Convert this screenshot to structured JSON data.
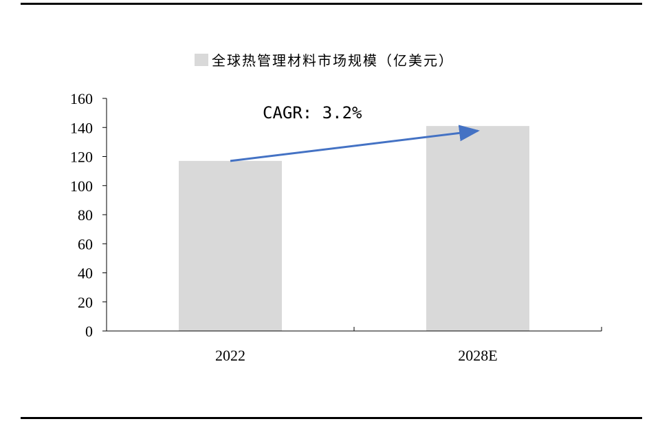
{
  "chart_data": {
    "type": "bar",
    "categories": [
      "2022",
      "2028E"
    ],
    "series": [
      {
        "name": "全球热管理材料市场规模（亿美元）",
        "values": [
          117,
          141
        ]
      }
    ],
    "ylim": [
      0,
      160
    ],
    "yticks": [
      0,
      20,
      40,
      60,
      80,
      100,
      120,
      140,
      160
    ],
    "xlabel": "",
    "ylabel": "",
    "grid": false,
    "legend": "top-center",
    "annotation": "CAGR: 3.2%",
    "colors": {
      "bar": "#d9d9d9",
      "arrow": "#4472c4",
      "axis": "#000000"
    }
  }
}
